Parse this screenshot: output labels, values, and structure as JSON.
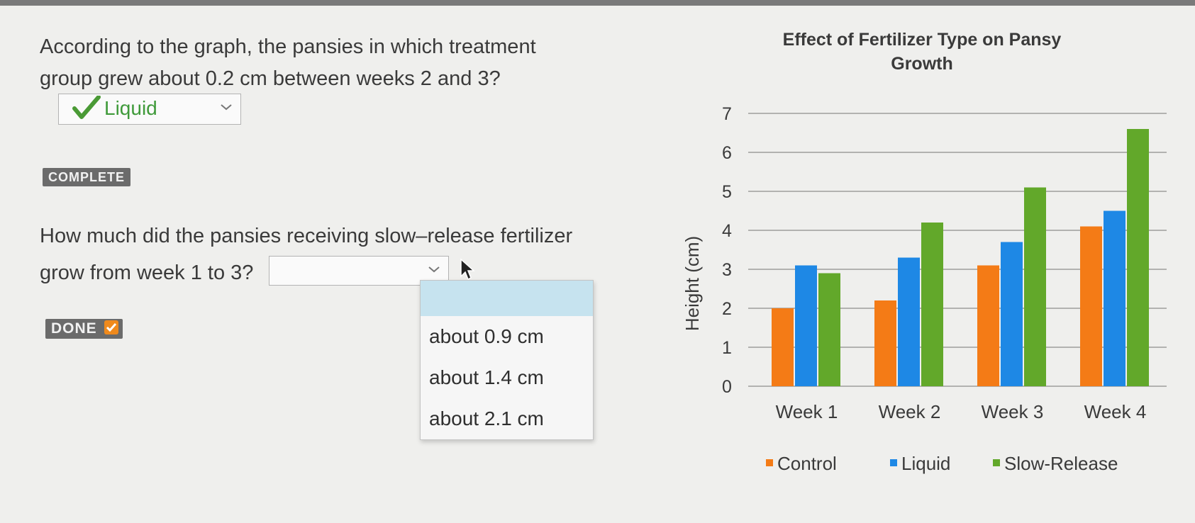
{
  "question1": {
    "text": "According to the graph, the pansies in which treatment group grew about 0.2 cm between weeks 2 and 3?",
    "answer": "Liquid",
    "answer_color": "#3f9a3a"
  },
  "complete_badge": "COMPLETE",
  "question2": {
    "text": "How much did the pansies receiving slow–release fertilizer grow from week 1 to 3?",
    "selected": "",
    "options": [
      "about 0.9 cm",
      "about 1.4 cm",
      "about  2.1 cm"
    ]
  },
  "done_badge": "DONE",
  "icons": [
    "check-icon",
    "chevron-down-icon",
    "mouse-cursor-icon",
    "done-check-icon"
  ],
  "chart_data": {
    "type": "bar",
    "title": "Effect of Fertilizer Type on Pansy Growth",
    "ylabel": "Height (cm)",
    "xlabel": "",
    "categories": [
      "Week 1",
      "Week 2",
      "Week 3",
      "Week 4"
    ],
    "yticks": [
      "0",
      "1",
      "2",
      "3",
      "4",
      "5",
      "6",
      "7"
    ],
    "ylim": [
      0,
      7
    ],
    "grid": true,
    "legend_position": "bottom",
    "series": [
      {
        "name": "Control",
        "color": "#f47b16",
        "values": [
          2.0,
          2.2,
          3.1,
          4.1
        ]
      },
      {
        "name": "Liquid",
        "color": "#1e88e5",
        "values": [
          3.1,
          3.3,
          3.7,
          4.5
        ]
      },
      {
        "name": "Slow-Release",
        "color": "#62a82a",
        "values": [
          2.9,
          4.2,
          5.1,
          6.6
        ]
      }
    ]
  }
}
